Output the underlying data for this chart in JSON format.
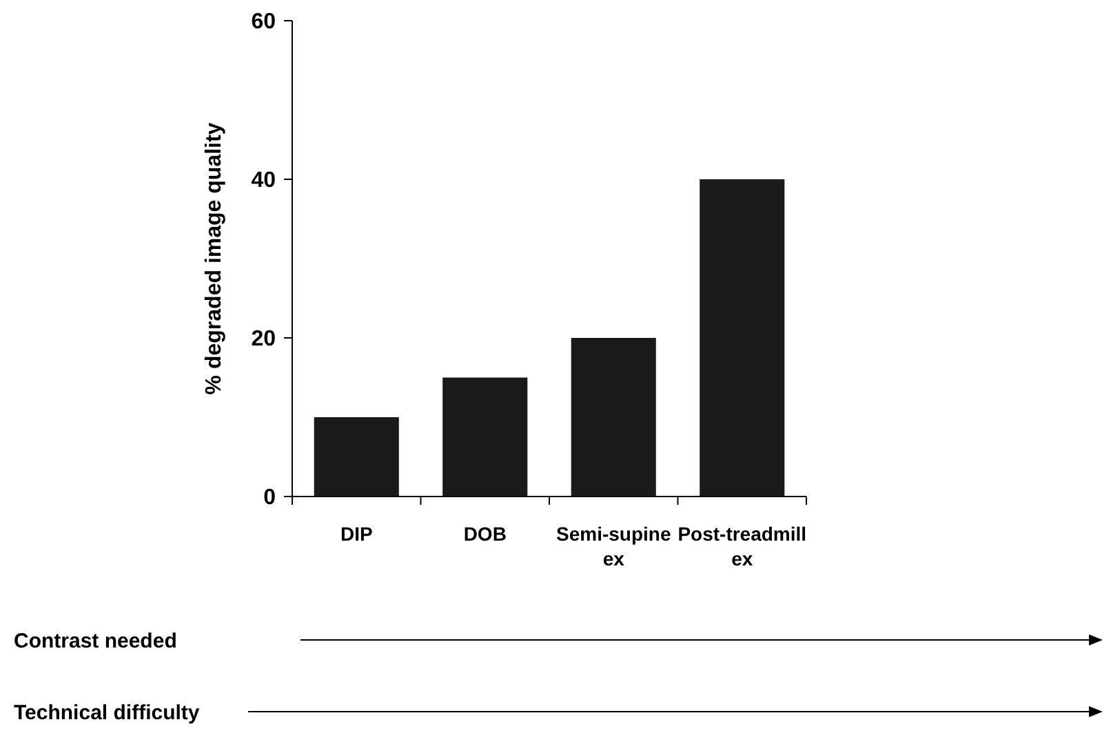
{
  "chart_data": {
    "type": "bar",
    "ylabel": "% degraded image quality",
    "categories": [
      "DIP",
      "DOB",
      "Semi-supine ex",
      "Post-treadmill ex"
    ],
    "values": [
      10,
      15,
      20,
      40
    ],
    "color": "#1a1a1a",
    "ylim": [
      0,
      60
    ],
    "yticks": [
      0,
      20,
      40,
      60
    ],
    "grid": false,
    "annotations": [
      "Contrast needed",
      "Technical difficulty"
    ]
  }
}
